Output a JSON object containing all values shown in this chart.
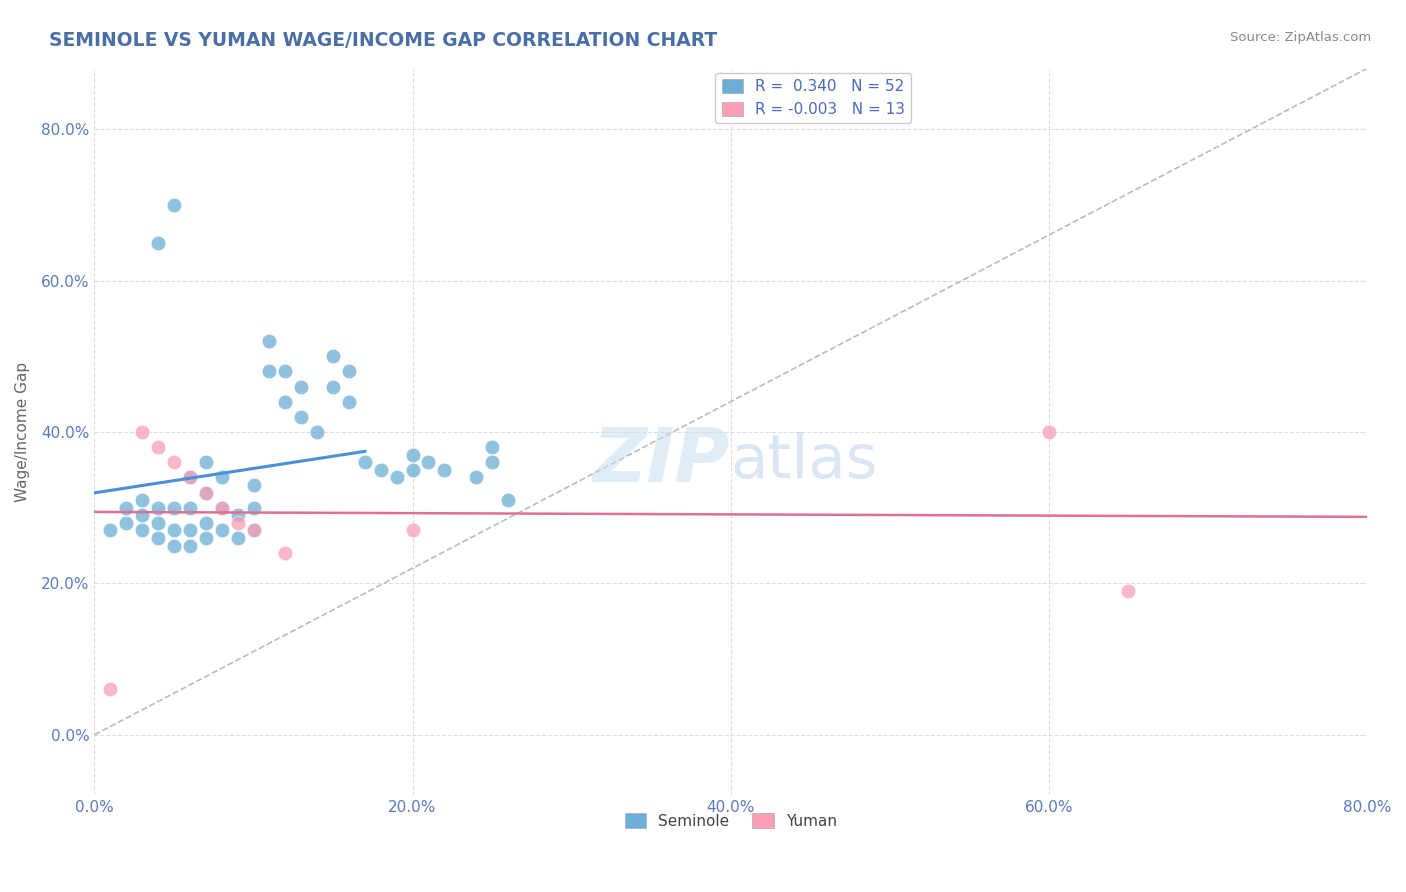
{
  "title": "SEMINOLE VS YUMAN WAGE/INCOME GAP CORRELATION CHART",
  "source_text": "Source: ZipAtlas.com",
  "ylabel": "Wage/Income Gap",
  "xlim": [
    0.0,
    0.8
  ],
  "ylim": [
    -0.08,
    0.88
  ],
  "x_ticks": [
    0.0,
    0.2,
    0.4,
    0.6,
    0.8
  ],
  "y_ticks": [
    0.0,
    0.2,
    0.4,
    0.6,
    0.8
  ],
  "seminole_color": "#6baed6",
  "seminole_edge": "#5a9dc5",
  "yuman_color": "#fa9fb5",
  "yuman_edge": "#e88ea4",
  "line_blue": "#4a90d9",
  "line_pink": "#e07090",
  "ref_line_color": "#bbbbbb",
  "seminole_R": 0.34,
  "seminole_N": 52,
  "yuman_R": -0.003,
  "yuman_N": 13,
  "watermark_zip": "ZIP",
  "watermark_atlas": "atlas",
  "title_color": "#4a6fa5",
  "tick_color": "#5a7abf",
  "ylabel_color": "#666666",
  "source_color": "#888888",
  "grid_color": "#dddddd",
  "seminole_x": [
    0.01,
    0.02,
    0.02,
    0.03,
    0.03,
    0.03,
    0.04,
    0.04,
    0.04,
    0.04,
    0.05,
    0.05,
    0.05,
    0.05,
    0.06,
    0.06,
    0.06,
    0.06,
    0.07,
    0.07,
    0.07,
    0.07,
    0.08,
    0.08,
    0.08,
    0.09,
    0.09,
    0.1,
    0.1,
    0.1,
    0.11,
    0.11,
    0.12,
    0.12,
    0.13,
    0.13,
    0.14,
    0.15,
    0.15,
    0.16,
    0.16,
    0.17,
    0.18,
    0.19,
    0.2,
    0.2,
    0.21,
    0.22,
    0.24,
    0.25,
    0.25,
    0.26
  ],
  "seminole_y": [
    0.27,
    0.28,
    0.3,
    0.27,
    0.29,
    0.31,
    0.26,
    0.28,
    0.3,
    0.65,
    0.25,
    0.27,
    0.3,
    0.7,
    0.25,
    0.27,
    0.3,
    0.34,
    0.26,
    0.28,
    0.32,
    0.36,
    0.27,
    0.3,
    0.34,
    0.26,
    0.29,
    0.27,
    0.3,
    0.33,
    0.48,
    0.52,
    0.44,
    0.48,
    0.42,
    0.46,
    0.4,
    0.46,
    0.5,
    0.44,
    0.48,
    0.36,
    0.35,
    0.34,
    0.35,
    0.37,
    0.36,
    0.35,
    0.34,
    0.36,
    0.38,
    0.31
  ],
  "yuman_x": [
    0.01,
    0.03,
    0.04,
    0.05,
    0.06,
    0.07,
    0.08,
    0.09,
    0.1,
    0.12,
    0.2,
    0.6,
    0.65
  ],
  "yuman_y": [
    0.06,
    0.4,
    0.38,
    0.36,
    0.34,
    0.32,
    0.3,
    0.28,
    0.27,
    0.24,
    0.27,
    0.4,
    0.19
  ]
}
